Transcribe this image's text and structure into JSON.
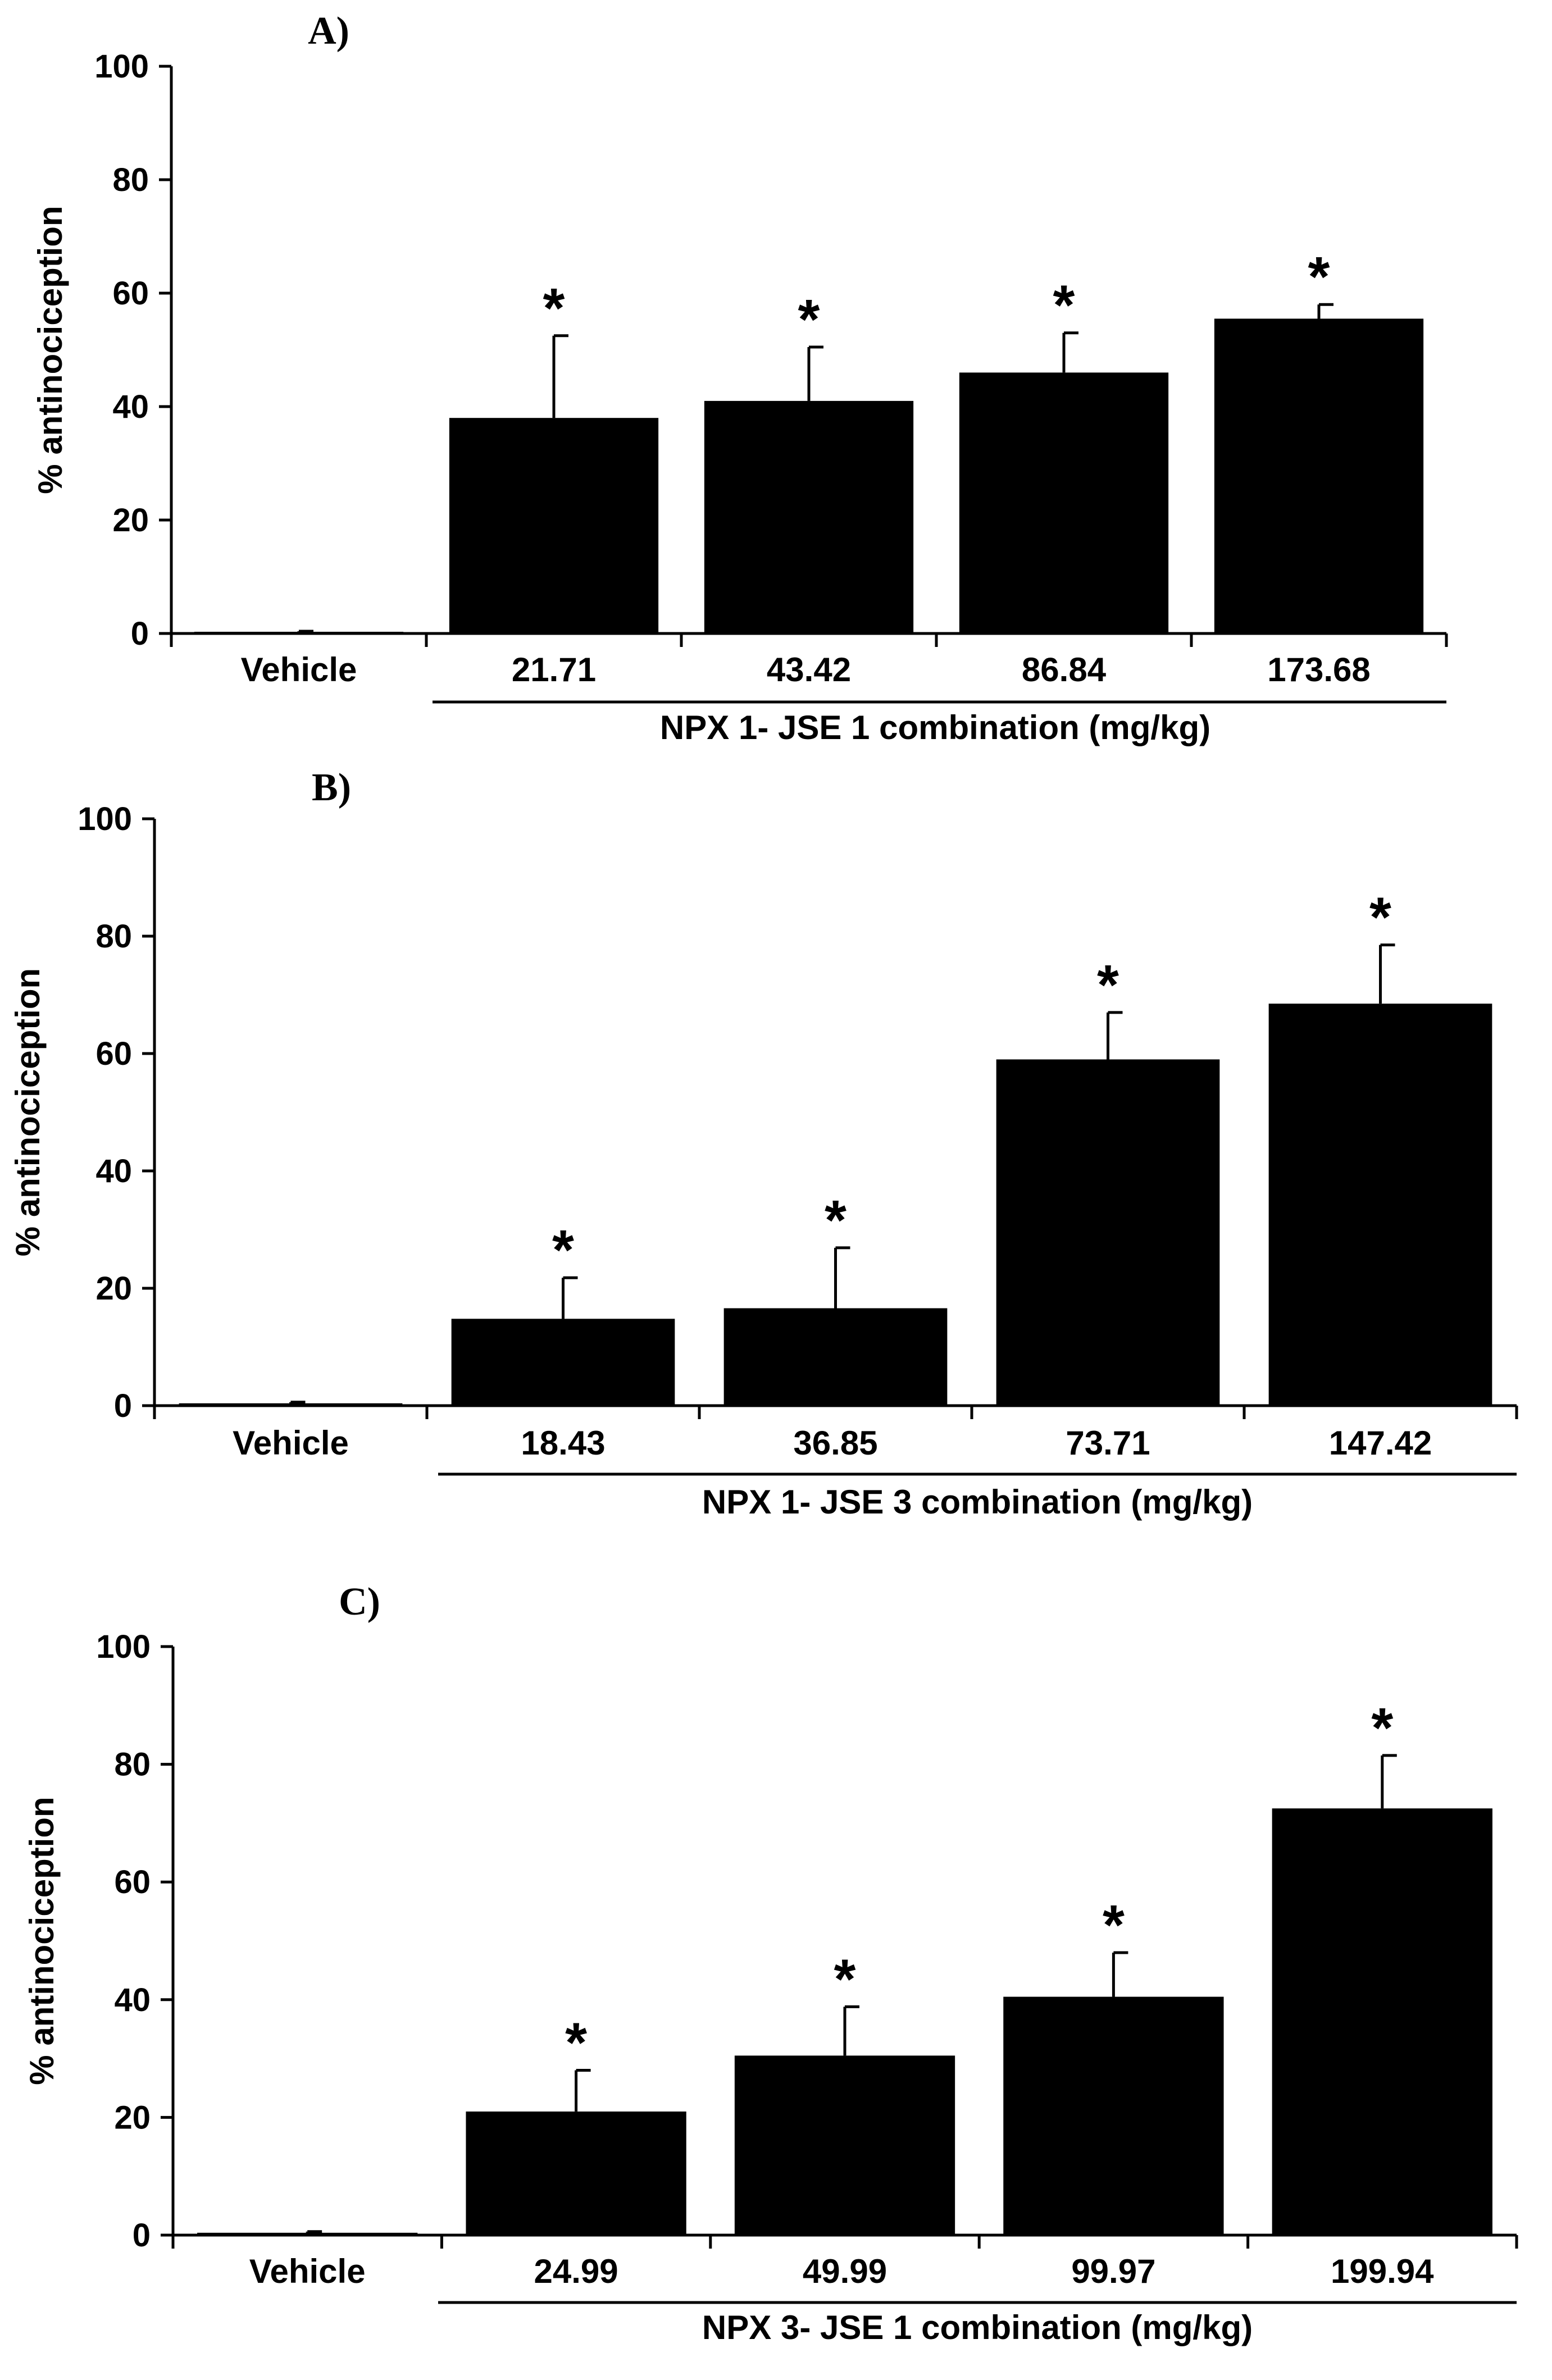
{
  "chart_data": [
    {
      "type": "bar",
      "panel_label": "A)",
      "ylabel": "% antinociception",
      "xlabel": "NPX 1- JSE 1 combination (mg/kg)",
      "ylim": [
        0,
        100
      ],
      "yticks": [
        "0",
        "20",
        "40",
        "60",
        "80",
        "100"
      ],
      "categories": [
        "Vehicle",
        "21.71",
        "43.42",
        "86.84",
        "173.68"
      ],
      "values": [
        0.3,
        38,
        41,
        46,
        55.5
      ],
      "errors": [
        0.1,
        14.5,
        9.5,
        7,
        2.5
      ],
      "significance": [
        "",
        "*",
        "*",
        "*",
        "*"
      ]
    },
    {
      "type": "bar",
      "panel_label": "B)",
      "ylabel": "% antinociception",
      "xlabel": "NPX 1- JSE 3 combination (mg/kg)",
      "ylim": [
        0,
        100
      ],
      "yticks": [
        "0",
        "20",
        "40",
        "60",
        "80",
        "100"
      ],
      "categories": [
        "Vehicle",
        "18.43",
        "36.85",
        "73.71",
        "147.42"
      ],
      "values": [
        0.4,
        14.8,
        16.6,
        59,
        68.5
      ],
      "errors": [
        0.2,
        7,
        10.3,
        8,
        10
      ],
      "significance": [
        "",
        "*",
        "*",
        "*",
        "*"
      ]
    },
    {
      "type": "bar",
      "panel_label": "C)",
      "ylabel": "% antinociception",
      "xlabel": "NPX 3- JSE 1 combination (mg/kg)",
      "ylim": [
        0,
        100
      ],
      "yticks": [
        "0",
        "20",
        "40",
        "60",
        "80",
        "100"
      ],
      "categories": [
        "Vehicle",
        "24.99",
        "49.99",
        "99.97",
        "199.94"
      ],
      "values": [
        0.4,
        21,
        30.5,
        40.5,
        72.5
      ],
      "errors": [
        0.2,
        7,
        8.3,
        7.5,
        9
      ],
      "significance": [
        "",
        "*",
        "*",
        "*",
        "*"
      ]
    }
  ]
}
